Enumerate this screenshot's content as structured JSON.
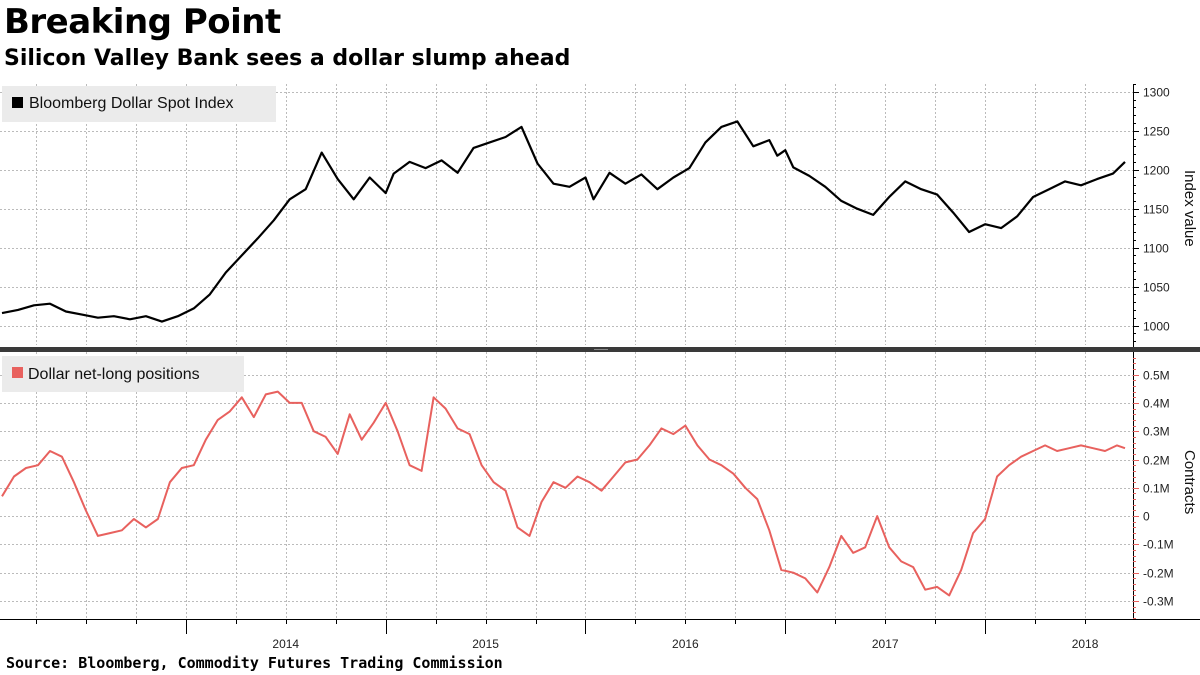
{
  "title": "Breaking Point",
  "subtitle": "Silicon Valley Bank sees a dollar slump ahead",
  "source": "Source: Bloomberg, Commodity Futures Trading Commission",
  "colors": {
    "index_line": "#000000",
    "positions_line": "#e8615e",
    "grid": "#bbbbbb",
    "divider": "#3a3a3a"
  },
  "chart_data": [
    {
      "type": "line",
      "panel": "top",
      "legend": "Bloomberg Dollar Spot Index",
      "ylabel": "Index value",
      "ylim": [
        975,
        1310
      ],
      "yticks": [
        1000,
        1050,
        1100,
        1150,
        1200,
        1250,
        1300
      ],
      "xlim": [
        2013.07,
        2018.74
      ],
      "x": [
        2013.08,
        2013.16,
        2013.24,
        2013.32,
        2013.4,
        2013.48,
        2013.56,
        2013.64,
        2013.72,
        2013.8,
        2013.88,
        2013.96,
        2014.04,
        2014.12,
        2014.2,
        2014.28,
        2014.36,
        2014.44,
        2014.52,
        2014.6,
        2014.68,
        2014.76,
        2014.84,
        2014.92,
        2015.0,
        2015.04,
        2015.12,
        2015.2,
        2015.28,
        2015.36,
        2015.44,
        2015.52,
        2015.6,
        2015.68,
        2015.76,
        2015.84,
        2015.92,
        2016.0,
        2016.04,
        2016.12,
        2016.2,
        2016.28,
        2016.36,
        2016.44,
        2016.52,
        2016.6,
        2016.68,
        2016.76,
        2016.84,
        2016.92,
        2016.96,
        2017.0,
        2017.04,
        2017.12,
        2017.2,
        2017.28,
        2017.36,
        2017.44,
        2017.52,
        2017.6,
        2017.68,
        2017.76,
        2017.84,
        2017.92,
        2018.0,
        2018.08,
        2018.16,
        2018.24,
        2018.32,
        2018.4,
        2018.48,
        2018.56,
        2018.64,
        2018.7
      ],
      "y": [
        1016,
        1020,
        1026,
        1028,
        1018,
        1014,
        1010,
        1012,
        1008,
        1012,
        1005,
        1012,
        1022,
        1040,
        1068,
        1090,
        1112,
        1135,
        1162,
        1175,
        1222,
        1188,
        1162,
        1190,
        1170,
        1195,
        1210,
        1202,
        1212,
        1196,
        1228,
        1235,
        1242,
        1255,
        1208,
        1182,
        1178,
        1190,
        1162,
        1196,
        1182,
        1194,
        1175,
        1190,
        1202,
        1235,
        1255,
        1262,
        1230,
        1238,
        1218,
        1225,
        1203,
        1192,
        1178,
        1160,
        1150,
        1142,
        1165,
        1185,
        1175,
        1168,
        1145,
        1120,
        1130,
        1125,
        1140,
        1165,
        1175,
        1185,
        1180,
        1188,
        1195,
        1210
      ]
    },
    {
      "type": "line",
      "panel": "bottom",
      "legend": "Dollar net-long positions",
      "ylabel": "Contracts",
      "ylim": [
        -0.36,
        0.58
      ],
      "yticks": [
        -0.3,
        -0.2,
        -0.1,
        0,
        0.1,
        0.2,
        0.3,
        0.4,
        0.5
      ],
      "ytick_labels": [
        "-0.3M",
        "-0.2M",
        "-0.1M",
        "0",
        "0.1M",
        "0.2M",
        "0.3M",
        "0.4M",
        "0.5M"
      ],
      "xlim": [
        2013.07,
        2018.74
      ],
      "xlabel_ticks": [
        "2014",
        "2015",
        "2016",
        "2017",
        "2018"
      ],
      "x": [
        2013.08,
        2013.14,
        2013.2,
        2013.26,
        2013.32,
        2013.38,
        2013.44,
        2013.5,
        2013.56,
        2013.62,
        2013.68,
        2013.74,
        2013.8,
        2013.86,
        2013.92,
        2013.98,
        2014.04,
        2014.1,
        2014.16,
        2014.22,
        2014.28,
        2014.34,
        2014.4,
        2014.46,
        2014.52,
        2014.58,
        2014.64,
        2014.7,
        2014.76,
        2014.82,
        2014.88,
        2014.94,
        2015.0,
        2015.06,
        2015.12,
        2015.18,
        2015.24,
        2015.3,
        2015.36,
        2015.42,
        2015.48,
        2015.54,
        2015.6,
        2015.66,
        2015.72,
        2015.78,
        2015.84,
        2015.9,
        2015.96,
        2016.02,
        2016.08,
        2016.14,
        2016.2,
        2016.26,
        2016.32,
        2016.38,
        2016.44,
        2016.5,
        2016.56,
        2016.62,
        2016.68,
        2016.74,
        2016.8,
        2016.86,
        2016.92,
        2016.98,
        2017.04,
        2017.1,
        2017.16,
        2017.22,
        2017.28,
        2017.34,
        2017.4,
        2017.46,
        2017.52,
        2017.58,
        2017.64,
        2017.7,
        2017.76,
        2017.82,
        2017.88,
        2017.94,
        2018.0,
        2018.06,
        2018.12,
        2018.18,
        2018.24,
        2018.3,
        2018.36,
        2018.42,
        2018.48,
        2018.54,
        2018.6,
        2018.66,
        2018.7
      ],
      "y": [
        0.07,
        0.14,
        0.17,
        0.18,
        0.23,
        0.21,
        0.12,
        0.02,
        -0.07,
        -0.06,
        -0.05,
        -0.01,
        -0.04,
        -0.01,
        0.12,
        0.17,
        0.18,
        0.27,
        0.34,
        0.37,
        0.42,
        0.35,
        0.43,
        0.44,
        0.4,
        0.4,
        0.3,
        0.28,
        0.22,
        0.36,
        0.27,
        0.33,
        0.4,
        0.3,
        0.18,
        0.16,
        0.42,
        0.38,
        0.31,
        0.29,
        0.18,
        0.12,
        0.09,
        -0.04,
        -0.07,
        0.05,
        0.12,
        0.1,
        0.14,
        0.12,
        0.09,
        0.14,
        0.19,
        0.2,
        0.25,
        0.31,
        0.29,
        0.32,
        0.25,
        0.2,
        0.18,
        0.15,
        0.1,
        0.06,
        -0.05,
        -0.19,
        -0.2,
        -0.22,
        -0.27,
        -0.18,
        -0.07,
        -0.13,
        -0.11,
        0.0,
        -0.11,
        -0.16,
        -0.18,
        -0.26,
        -0.25,
        -0.28,
        -0.19,
        -0.06,
        -0.01,
        0.14,
        0.18,
        0.21,
        0.23,
        0.25,
        0.23,
        0.24,
        0.25,
        0.24,
        0.23,
        0.25,
        0.24
      ]
    }
  ]
}
